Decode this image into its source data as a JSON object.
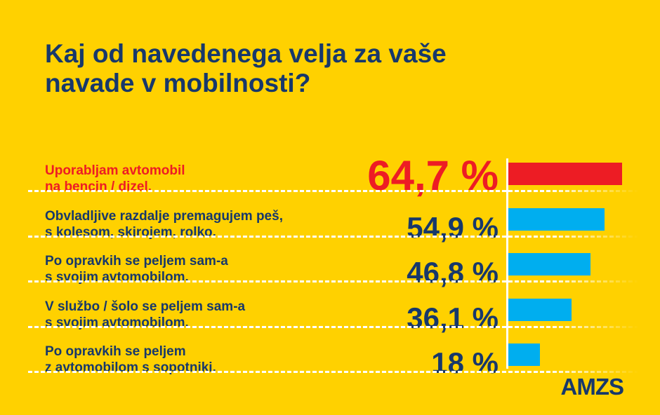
{
  "title": "Kaj od navedenega velja za vaše navade v mobilnosti?",
  "logo": "AMZS",
  "colors": {
    "background": "#FFD100",
    "highlight": "#ED1C24",
    "bar": "#00AEEF",
    "text": "#17386b"
  },
  "chart_data": {
    "type": "bar",
    "orientation": "horizontal",
    "title": "Kaj od navedenega velja za vaše navade v mobilnosti?",
    "categories": [
      "Uporabljam avtomobil na bencin / dizel.",
      "Obvladljive razdalje premagujem peš, s kolesom, skirojem, rolko.",
      "Po opravkih se peljem sam-a s svojim avtomobilom.",
      "V službo / šolo se peljem sam-a s svojim avtomobilom.",
      "Po opravkih se peljem z avtomobilom s sopotniki."
    ],
    "label_lines": [
      [
        "Uporabljam avtomobil",
        "na bencin / dizel."
      ],
      [
        "Obvladljive razdalje premagujem peš,",
        "s kolesom, skirojem, rolko."
      ],
      [
        "Po opravkih se peljem sam-a",
        "s svojim avtomobilom."
      ],
      [
        "V službo / šolo se peljem sam-a",
        "s svojim avtomobilom."
      ],
      [
        "Po opravkih se peljem",
        "z avtomobilom s sopotniki."
      ]
    ],
    "values": [
      64.7,
      54.9,
      46.8,
      36.1,
      18
    ],
    "value_labels": [
      "64,7 %",
      "54,9 %",
      "46,8 %",
      "36,1 %",
      "18 %"
    ],
    "highlighted_index": 0,
    "unit": "%",
    "grid": false
  }
}
